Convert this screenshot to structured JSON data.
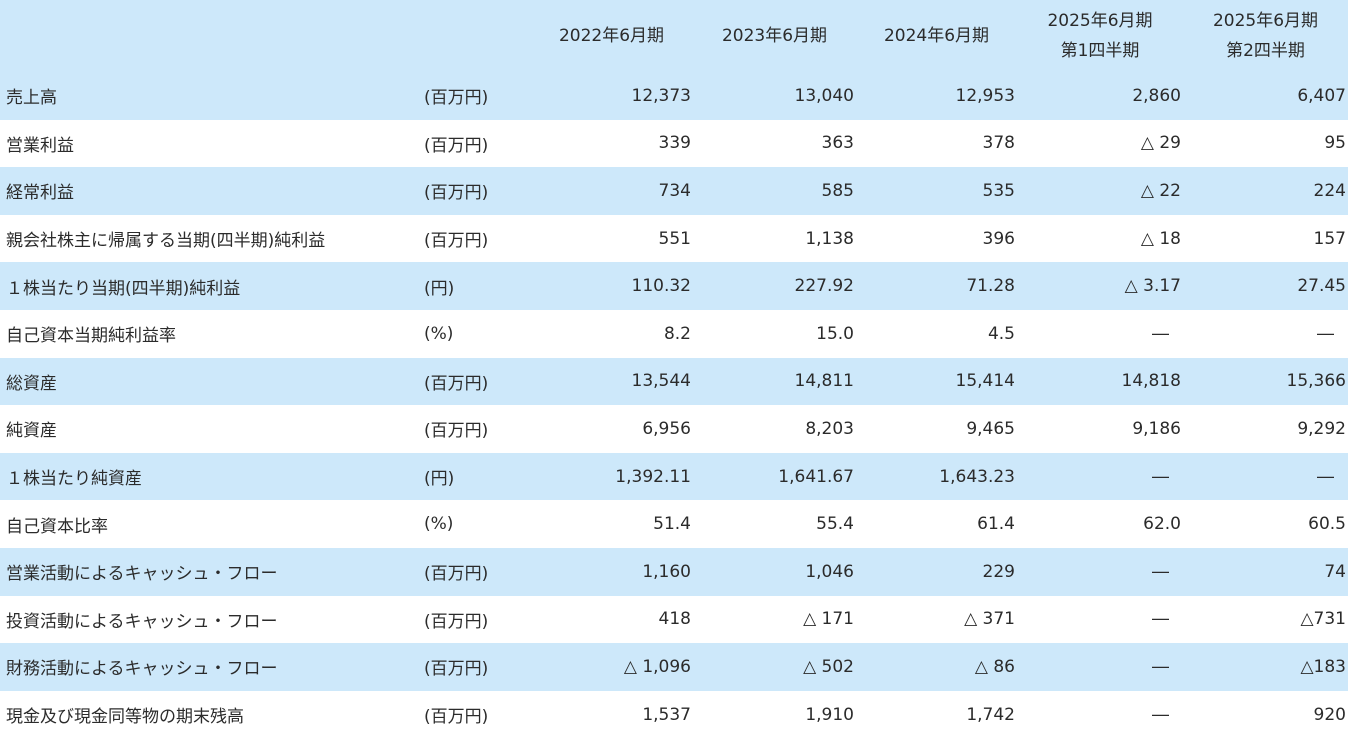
{
  "headers": {
    "col1": "2022年6月期",
    "col2": "2023年6月期",
    "col3": "2024年6月期",
    "col4_line1": "2025年6月期",
    "col4_line2": "第1四半期",
    "col5_line1": "2025年6月期",
    "col5_line2": "第2四半期"
  },
  "rows": [
    {
      "label": "売上高",
      "unit": "(百万円)",
      "values": [
        "12,373",
        "13,040",
        "12,953",
        "2,860",
        "6,407"
      ]
    },
    {
      "label": "営業利益",
      "unit": "(百万円)",
      "values": [
        "339",
        "363",
        "378",
        "△ 29",
        "95"
      ]
    },
    {
      "label": "経常利益",
      "unit": "(百万円)",
      "values": [
        "734",
        "585",
        "535",
        "△ 22",
        "224"
      ]
    },
    {
      "label": "親会社株主に帰属する当期(四半期)純利益",
      "unit": "(百万円)",
      "values": [
        "551",
        "1,138",
        "396",
        "△ 18",
        "157"
      ]
    },
    {
      "label": "１株当たり当期(四半期)純利益",
      "unit": "(円)",
      "values": [
        "110.32",
        "227.92",
        "71.28",
        "△ 3.17",
        "27.45"
      ]
    },
    {
      "label": "自己資本当期純利益率",
      "unit": "(%)",
      "values": [
        "8.2",
        "15.0",
        "4.5",
        "―",
        "―"
      ]
    },
    {
      "label": "総資産",
      "unit": "(百万円)",
      "values": [
        "13,544",
        "14,811",
        "15,414",
        "14,818",
        "15,366"
      ]
    },
    {
      "label": "純資産",
      "unit": "(百万円)",
      "values": [
        "6,956",
        "8,203",
        "9,465",
        "9,186",
        "9,292"
      ]
    },
    {
      "label": "１株当たり純資産",
      "unit": "(円)",
      "values": [
        "1,392.11",
        "1,641.67",
        "1,643.23",
        "―",
        "―"
      ]
    },
    {
      "label": "自己資本比率",
      "unit": "(%)",
      "values": [
        "51.4",
        "55.4",
        "61.4",
        "62.0",
        "60.5"
      ]
    },
    {
      "label": "営業活動によるキャッシュ・フロー",
      "unit": "(百万円)",
      "values": [
        "1,160",
        "1,046",
        "229",
        "―",
        "74"
      ]
    },
    {
      "label": "投資活動によるキャッシュ・フロー",
      "unit": "(百万円)",
      "values": [
        "418",
        "△ 171",
        "△ 371",
        "―",
        "△731"
      ]
    },
    {
      "label": "財務活動によるキャッシュ・フロー",
      "unit": "(百万円)",
      "values": [
        "△ 1,096",
        "△ 502",
        "△ 86",
        "―",
        "△183"
      ]
    },
    {
      "label": "現金及び現金同等物の期末残高",
      "unit": "(百万円)",
      "values": [
        "1,537",
        "1,910",
        "1,742",
        "―",
        "920"
      ]
    }
  ],
  "colors": {
    "shade": "#cde8fa",
    "text": "#2b2b2b"
  }
}
